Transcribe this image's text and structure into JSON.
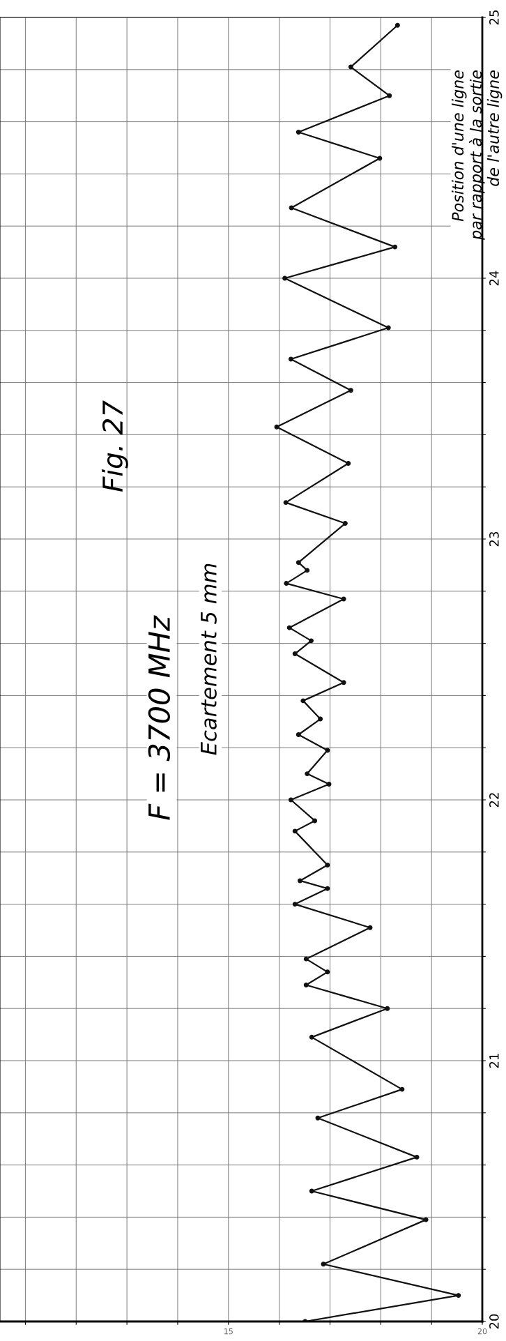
{
  "chart_data": {
    "type": "line",
    "orientation": "horizontal",
    "title": "Fig. 27",
    "ylabel": "Position d'une ligne\npar rapport à la sortie\nde l'autre ligne",
    "annotations": [
      "F = 3700 MHz",
      "Ecartement 5 mm"
    ],
    "x": [
      20.0,
      20.1,
      20.22,
      20.39,
      20.5,
      20.63,
      20.78,
      20.89,
      21.09,
      21.2,
      21.29,
      21.34,
      21.39,
      21.51,
      21.6,
      21.66,
      21.69,
      21.75,
      21.88,
      21.92,
      22.0,
      22.06,
      22.1,
      22.19,
      22.25,
      22.31,
      22.38,
      22.45,
      22.56,
      22.61,
      22.66,
      22.77,
      22.83,
      22.88,
      22.91,
      23.06,
      23.14,
      23.29,
      23.43,
      23.57,
      23.69,
      23.81,
      24.0,
      24.12,
      24.27,
      24.46,
      24.56,
      24.7,
      24.81,
      24.97
    ],
    "values": [
      16.51,
      19.53,
      16.87,
      18.89,
      16.64,
      18.71,
      16.76,
      18.42,
      16.64,
      18.13,
      16.53,
      16.95,
      16.53,
      17.79,
      16.31,
      16.95,
      16.41,
      16.95,
      16.31,
      16.7,
      16.23,
      16.98,
      16.55,
      16.95,
      16.38,
      16.81,
      16.47,
      17.27,
      16.31,
      16.63,
      16.2,
      17.27,
      16.14,
      16.55,
      16.38,
      17.3,
      16.13,
      17.36,
      15.95,
      17.41,
      16.23,
      18.15,
      16.11,
      18.28,
      16.24,
      17.98,
      16.38,
      18.17,
      17.41,
      18.33
    ],
    "color": "#111111",
    "marker": "circle",
    "line_style": "solid",
    "xlim": [
      10.5,
      20
    ],
    "xticks": [
      {
        "value": 11,
        "label": null
      },
      {
        "value": 12,
        "label": null
      },
      {
        "value": 13,
        "label": null
      },
      {
        "value": 14,
        "label": null
      },
      15,
      {
        "value": 16,
        "label": null
      },
      {
        "value": 17,
        "label": null
      },
      {
        "value": 18,
        "label": null
      },
      {
        "value": 19,
        "label": null
      },
      20
    ],
    "ylim": [
      20,
      25
    ],
    "yticks": [
      20,
      {
        "value": 20.2,
        "label": null
      },
      {
        "value": 20.4,
        "label": null
      },
      {
        "value": 20.6,
        "label": null
      },
      {
        "value": 20.8,
        "label": null
      },
      21,
      {
        "value": 21.2,
        "label": null
      },
      {
        "value": 21.4,
        "label": null
      },
      {
        "value": 21.6,
        "label": null
      },
      {
        "value": 21.8,
        "label": null
      },
      22,
      {
        "value": 22.2,
        "label": null
      },
      {
        "value": 22.4,
        "label": null
      },
      {
        "value": 22.6,
        "label": null
      },
      {
        "value": 22.8,
        "label": null
      },
      23,
      {
        "value": 23.2,
        "label": null
      },
      {
        "value": 23.4,
        "label": null
      },
      {
        "value": 23.6,
        "label": null
      },
      {
        "value": 23.8,
        "label": null
      },
      24,
      {
        "value": 24.2,
        "label": null
      },
      {
        "value": 24.4,
        "label": null
      },
      {
        "value": 24.6,
        "label": null
      },
      {
        "value": 24.8,
        "label": null
      },
      25
    ],
    "grid": true
  }
}
